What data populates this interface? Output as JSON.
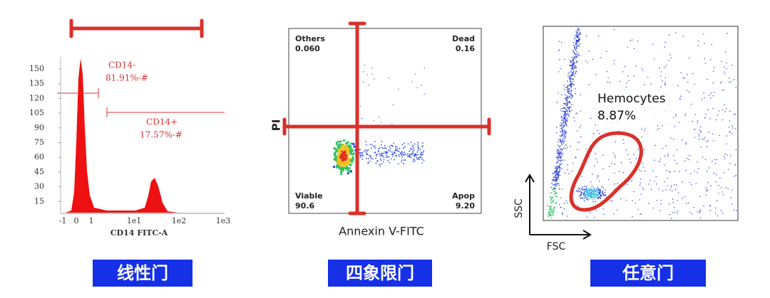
{
  "panels": [
    {
      "y_ticks": [
        "150",
        "135",
        "120",
        "105",
        "90",
        "75",
        "60",
        "45",
        "30",
        "15"
      ],
      "x_ticks": [
        "-1",
        "0",
        "1",
        "1e1",
        "1e2",
        "1e3"
      ],
      "x_axis_title": "CD14 FITC-A",
      "annotations": [
        "CD14-",
        "81.91%-#",
        "CD14+",
        "17.57%-#"
      ],
      "caption": "线性门"
    },
    {
      "quadrants": [
        {
          "name": "Others",
          "value": "0.060"
        },
        {
          "name": "Dead",
          "value": "0.16"
        },
        {
          "name": "Viable",
          "value": "90.6"
        },
        {
          "name": "Apop",
          "value": "9.20"
        }
      ],
      "y_axis_title": "PI",
      "x_axis_title": "Annexin V-FITC",
      "caption": "四象限门"
    },
    {
      "gate_name": "Hemocytes",
      "gate_value": "8.87%",
      "y_axis_title": "SSC",
      "x_axis_title": "FSC",
      "caption": "任意门"
    }
  ]
}
